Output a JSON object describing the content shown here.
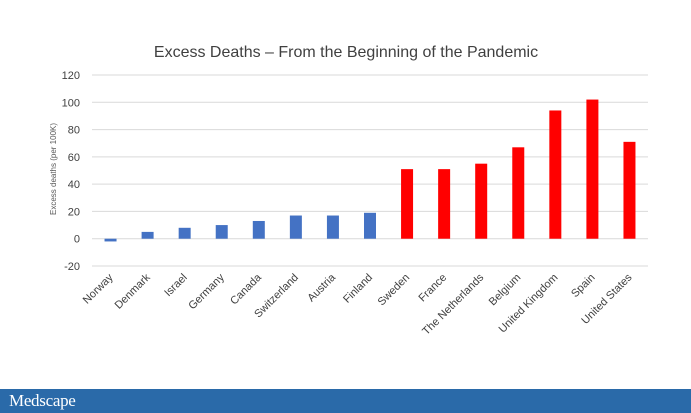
{
  "chart_data": {
    "type": "bar",
    "title": "Excess Deaths – From the Beginning of the Pandemic",
    "ylabel": "Excess deaths (per 100K)",
    "xlabel": "",
    "ylim": [
      -20,
      120
    ],
    "yticks": [
      -20,
      0,
      20,
      40,
      60,
      80,
      100,
      120
    ],
    "grid": true,
    "categories": [
      "Norway",
      "Denmark",
      "Israel",
      "Germany",
      "Canada",
      "Switzerland",
      "Austria",
      "Finland",
      "Sweden",
      "France",
      "The Netherlands",
      "Belgium",
      "United Kingdom",
      "Spain",
      "United States"
    ],
    "values": [
      -2,
      5,
      8,
      10,
      13,
      17,
      17,
      19,
      51,
      51,
      55,
      67,
      94,
      102,
      71
    ],
    "bar_colors": [
      "#4472c4",
      "#4472c4",
      "#4472c4",
      "#4472c4",
      "#4472c4",
      "#4472c4",
      "#4472c4",
      "#4472c4",
      "#ff0000",
      "#ff0000",
      "#ff0000",
      "#ff0000",
      "#ff0000",
      "#ff0000",
      "#ff0000"
    ]
  },
  "footer": {
    "brand": "Medscape",
    "background_color": "#2a6aa9"
  }
}
